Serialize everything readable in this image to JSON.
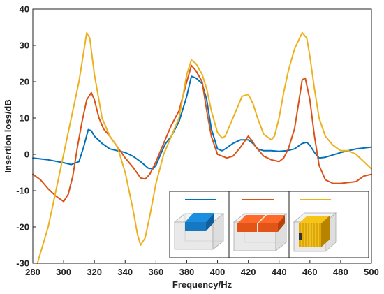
{
  "chart_data": {
    "type": "line",
    "title": "",
    "xlabel": "Frequency/Hz",
    "ylabel": "Insertion loss/dB",
    "xlim": [
      280,
      500
    ],
    "ylim": [
      -30,
      40
    ],
    "xticks": [
      280,
      300,
      320,
      340,
      360,
      380,
      400,
      420,
      440,
      460,
      480,
      500
    ],
    "yticks": [
      -30,
      -20,
      -10,
      0,
      10,
      20,
      30,
      40
    ],
    "grid": false,
    "legend": "bottom-right inset with three model thumbnails",
    "series": [
      {
        "color": "#0072BD",
        "x": [
          280,
          290,
          300,
          305,
          310,
          313,
          316,
          318,
          320,
          325,
          330,
          335,
          340,
          345,
          350,
          355,
          358,
          360,
          363,
          366,
          370,
          375,
          380,
          383,
          386,
          390,
          393,
          396,
          400,
          403,
          405,
          410,
          415,
          420,
          423,
          426,
          430,
          435,
          440,
          445,
          450,
          455,
          458,
          460,
          463,
          466,
          470,
          480,
          490,
          500
        ],
        "y": [
          -1,
          -1.5,
          -2.3,
          -2.8,
          -2,
          2,
          6.8,
          6.5,
          5,
          3,
          1.5,
          1,
          0.5,
          -0.5,
          -2,
          -3.8,
          -4,
          -3,
          0,
          2.8,
          5,
          9,
          16,
          21.5,
          21,
          19.5,
          15,
          7,
          1.5,
          1,
          1.5,
          3,
          4,
          4,
          3,
          1.5,
          1,
          1,
          0.8,
          1,
          1.5,
          3,
          3.3,
          2.5,
          0.5,
          -1,
          -0.8,
          0.5,
          1.5,
          2
        ]
      },
      {
        "color": "#D95319",
        "x": [
          280,
          285,
          290,
          295,
          300,
          303,
          306,
          309,
          312,
          315,
          318,
          320,
          323,
          326,
          330,
          335,
          340,
          345,
          350,
          353,
          356,
          360,
          365,
          370,
          375,
          380,
          383,
          386,
          390,
          393,
          396,
          400,
          403,
          406,
          410,
          415,
          420,
          422,
          425,
          430,
          435,
          440,
          443,
          446,
          450,
          453,
          455,
          457,
          460,
          463,
          466,
          470,
          475,
          480,
          490,
          495,
          500
        ],
        "y": [
          -5.5,
          -7,
          -9.5,
          -11.5,
          -13,
          -11,
          -6,
          2,
          9,
          15,
          17,
          15,
          10,
          7,
          5,
          2,
          -1,
          -3.5,
          -6.5,
          -6.8,
          -5.5,
          -2,
          3,
          8,
          12,
          20,
          24.5,
          23,
          20,
          12,
          5,
          0,
          -0.5,
          -1,
          -0.5,
          2,
          5,
          4,
          2,
          -0.5,
          -1.5,
          -2,
          -1,
          1.5,
          7,
          15,
          20.5,
          21,
          15,
          5,
          -3,
          -7,
          -8,
          -8,
          -7.5,
          -6,
          -5.5
        ]
      },
      {
        "color": "#EDB120",
        "x": [
          283,
          290,
          295,
          300,
          305,
          310,
          315,
          317,
          320,
          325,
          330,
          335,
          340,
          345,
          348,
          350,
          353,
          356,
          360,
          365,
          370,
          375,
          380,
          383,
          386,
          390,
          393,
          396,
          400,
          403,
          405,
          408,
          412,
          416,
          420,
          423,
          426,
          430,
          435,
          437,
          440,
          443,
          446,
          450,
          455,
          458,
          460,
          463,
          466,
          470,
          475,
          480,
          485,
          490,
          495,
          500
        ],
        "y": [
          -30,
          -20,
          -10,
          0,
          10,
          20,
          33.5,
          32,
          22,
          10,
          5,
          2,
          -5,
          -15,
          -22,
          -25,
          -23,
          -17,
          -8,
          0,
          5,
          10,
          22,
          26,
          25,
          22,
          18,
          12,
          6,
          4.5,
          5,
          8,
          12,
          16,
          16.5,
          14,
          10,
          5.5,
          4,
          5,
          10,
          17,
          23,
          29,
          33.5,
          32,
          27,
          18,
          10,
          5,
          2.5,
          1,
          1,
          0,
          -2,
          -4
        ]
      }
    ]
  }
}
